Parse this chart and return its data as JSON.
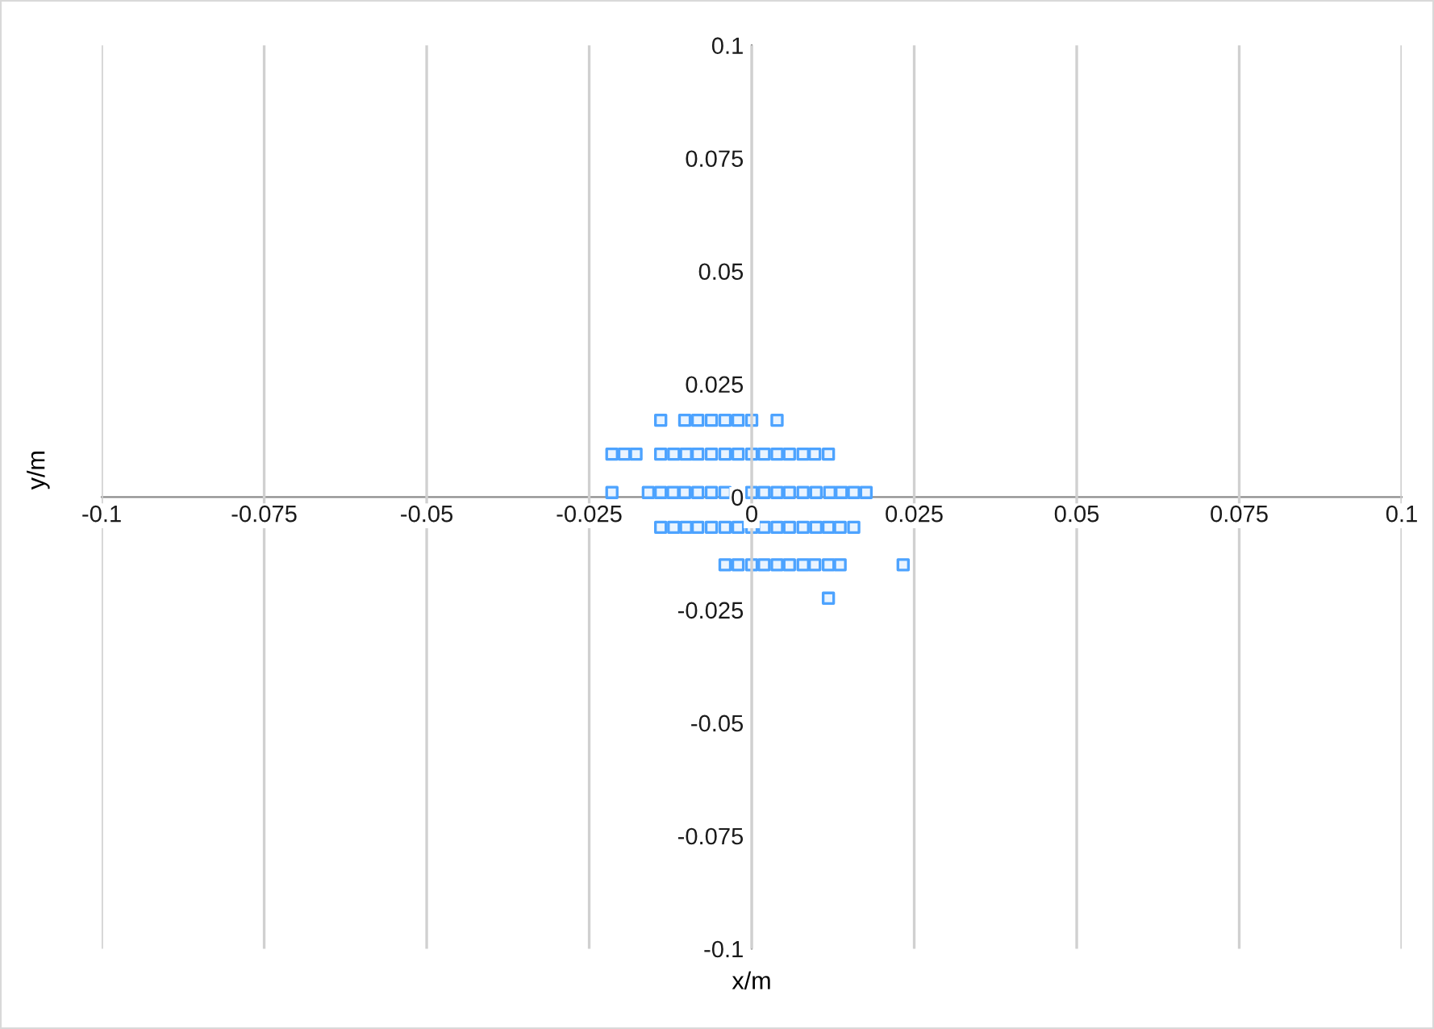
{
  "chart_data": {
    "type": "scatter",
    "xlabel": "x/m",
    "ylabel": "y/m",
    "xlim": [
      -0.1,
      0.1
    ],
    "ylim": [
      -0.1,
      0.1
    ],
    "xticks": [
      -0.1,
      -0.075,
      -0.05,
      -0.025,
      0,
      0.025,
      0.05,
      0.075,
      0.1
    ],
    "yticks": [
      -0.1,
      -0.075,
      -0.05,
      -0.025,
      0,
      0.025,
      0.05,
      0.075,
      0.1
    ],
    "grid": "x",
    "marker": "square",
    "series": [
      {
        "color": "#4da3ff",
        "x": [
          -0.014,
          -0.0103,
          -0.0083,
          -0.0062,
          -0.0041,
          -0.0021,
          0,
          0.0039,
          -0.0215,
          -0.0196,
          -0.0178,
          -0.014,
          -0.012,
          -0.0101,
          -0.0083,
          -0.0062,
          -0.0041,
          -0.0021,
          0,
          0.0019,
          0.0039,
          0.0058,
          0.0079,
          0.0097,
          0.0118,
          -0.0215,
          -0.0159,
          -0.014,
          -0.0121,
          -0.0103,
          -0.0083,
          -0.0062,
          -0.0041,
          -0.0021,
          0,
          0.0019,
          0.0039,
          0.0058,
          0.0079,
          0.0099,
          0.012,
          0.0138,
          0.0157,
          0.0176,
          -0.014,
          -0.012,
          -0.0101,
          -0.0083,
          -0.0062,
          -0.0041,
          -0.0021,
          0,
          0.0019,
          0.0039,
          0.0058,
          0.0079,
          0.0099,
          0.0118,
          0.0136,
          0.0157,
          -0.0041,
          -0.0021,
          0,
          0.0019,
          0.0039,
          0.0058,
          0.0079,
          0.0097,
          0.0118,
          0.0136,
          0.0233,
          0.0118
        ],
        "values": [
          0.017,
          0.017,
          0.017,
          0.017,
          0.017,
          0.017,
          0.017,
          0.017,
          0.0095,
          0.0095,
          0.0095,
          0.0095,
          0.0095,
          0.0095,
          0.0095,
          0.0095,
          0.0095,
          0.0095,
          0.0095,
          0.0095,
          0.0095,
          0.0095,
          0.0095,
          0.0095,
          0.0095,
          0.001,
          0.001,
          0.001,
          0.001,
          0.001,
          0.001,
          0.001,
          0.001,
          null,
          0.001,
          0.001,
          0.001,
          0.001,
          0.001,
          0.001,
          0.001,
          0.001,
          0.001,
          0.001,
          -0.0067,
          -0.0067,
          -0.0067,
          -0.0067,
          -0.0067,
          -0.0067,
          -0.0067,
          -0.0067,
          -0.0067,
          -0.0067,
          -0.0067,
          -0.0067,
          -0.0067,
          -0.0067,
          -0.0067,
          -0.0067,
          -0.015,
          -0.015,
          -0.015,
          -0.015,
          -0.015,
          -0.015,
          -0.015,
          -0.015,
          -0.015,
          -0.015,
          -0.015,
          -0.0224
        ]
      }
    ]
  }
}
